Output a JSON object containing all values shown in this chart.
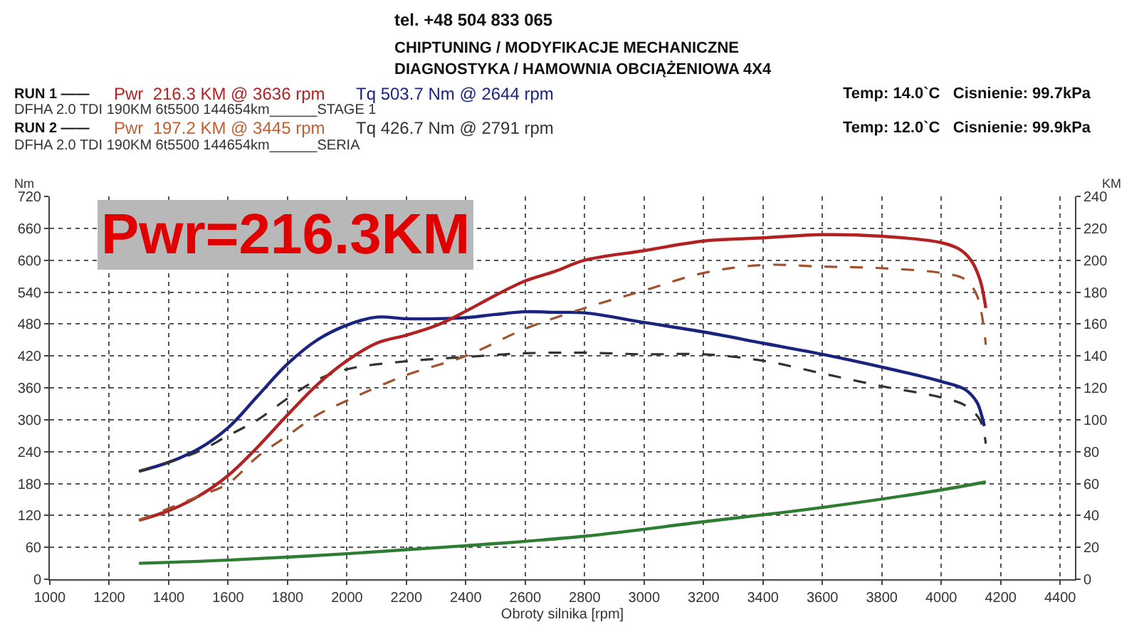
{
  "chart_data": {
    "type": "line",
    "xlabel": "Obroty silnika [rpm]",
    "ylabel": "Nm",
    "y2label": "KM",
    "xlim": [
      1000,
      4450
    ],
    "xticks": [
      1000,
      1200,
      1400,
      1600,
      1800,
      2000,
      2200,
      2400,
      2600,
      2800,
      3000,
      3200,
      3400,
      3600,
      3800,
      4000,
      4200,
      4400
    ],
    "ylim": [
      0,
      720
    ],
    "yticks": [
      0,
      60,
      120,
      180,
      240,
      300,
      360,
      420,
      480,
      540,
      600,
      660,
      720
    ],
    "y2lim": [
      0,
      240
    ],
    "y2ticks": [
      0,
      20,
      40,
      60,
      80,
      100,
      120,
      140,
      160,
      180,
      200,
      220,
      240
    ],
    "grid": true,
    "series": [
      {
        "color": "#1a237e",
        "line_style": "solid",
        "x": [
          1300,
          1400,
          1500,
          1600,
          1700,
          1800,
          1900,
          2000,
          2100,
          2200,
          2300,
          2400,
          2500,
          2600,
          2700,
          2800,
          3000,
          3200,
          3400,
          3600,
          3800,
          4000,
          4080,
          4120,
          4140,
          4145
        ],
        "values": [
          203,
          220,
          245,
          285,
          345,
          405,
          450,
          478,
          493,
          490,
          490,
          492,
          498,
          503,
          502,
          501,
          483,
          465,
          444,
          423,
          399,
          372,
          357,
          333,
          300,
          288
        ]
      },
      {
        "color": "#b22222",
        "axis": "y2",
        "line_style": "solid",
        "x": [
          1300,
          1400,
          1500,
          1600,
          1700,
          1800,
          1900,
          2000,
          2100,
          2200,
          2300,
          2400,
          2500,
          2600,
          2700,
          2800,
          3000,
          3200,
          3400,
          3600,
          3800,
          4000,
          4060,
          4100,
          4130,
          4150
        ],
        "values": [
          37,
          43,
          52,
          65,
          83,
          103,
          122,
          137,
          148,
          153,
          159,
          168,
          178,
          187,
          193,
          200,
          206,
          212,
          214,
          216,
          215,
          211,
          207,
          200,
          188,
          170
        ]
      },
      {
        "color": "#333333",
        "line_style": "dashed",
        "x": [
          1300,
          1400,
          1500,
          1600,
          1700,
          1800,
          1900,
          2000,
          2200,
          2400,
          2600,
          2800,
          3000,
          3200,
          3400,
          3600,
          3800,
          4000,
          4080,
          4130,
          4150
        ],
        "values": [
          203,
          220,
          240,
          270,
          300,
          340,
          375,
          395,
          410,
          418,
          425,
          426,
          423,
          423,
          411,
          387,
          363,
          342,
          327,
          300,
          255
        ]
      },
      {
        "color": "#a0522d",
        "axis": "y2",
        "line_style": "dashed",
        "x": [
          1300,
          1500,
          1600,
          1700,
          1800,
          1900,
          2000,
          2200,
          2400,
          2600,
          2800,
          3000,
          3200,
          3400,
          3600,
          3800,
          4000,
          4080,
          4120,
          4150
        ],
        "values": [
          37,
          52,
          60,
          77,
          90,
          103,
          112,
          128,
          140,
          157,
          170,
          181,
          192,
          197,
          196,
          195,
          192,
          188,
          178,
          147
        ]
      },
      {
        "color": "#2e7d32",
        "axis": "y2",
        "line_style": "solid",
        "x": [
          1300,
          1600,
          2000,
          2400,
          2800,
          3200,
          3600,
          4000,
          4150
        ],
        "values": [
          10,
          12,
          16,
          21,
          27,
          36,
          45,
          56,
          61
        ]
      }
    ],
    "annotations": [
      "tel. +48 504 833 065",
      "CHIPTUNING / MODYFIKACJE MECHANICZNE",
      "DIAGNOSTYKA / HAMOWNIA OBCIĄŻENIOWA 4X4",
      "RUN 1 ——",
      "Pwr  216.3 KM @ 3636 rpm",
      "Tq 503.7 Nm @ 2644 rpm",
      "DFHA 2.0 TDI 190KM 6t5500 144654km______STAGE 1",
      "Temp: 14.0`C   Cisnienie: 99.7kPa",
      "RUN 2 ——",
      "Pwr  197.2 KM @ 3445 rpm",
      "Tq 426.7 Nm @ 2791 rpm",
      "DFHA 2.0 TDI 190KM 6t5500 144654km______SERIA",
      "Temp: 12.0`C   Cisnienie: 99.9kPa",
      "Pwr=216.3KM"
    ]
  }
}
